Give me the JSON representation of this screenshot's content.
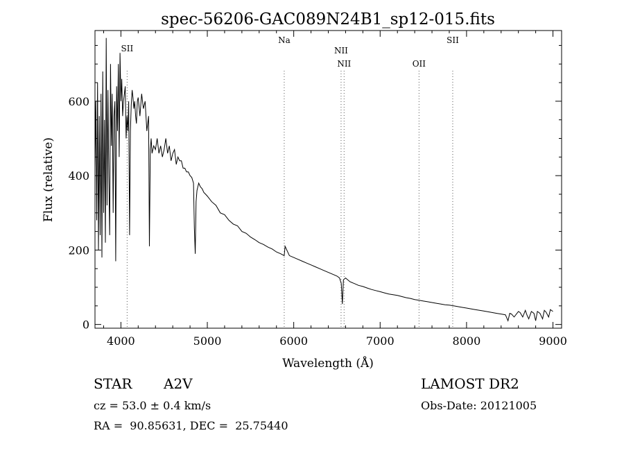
{
  "chart_data": {
    "type": "line",
    "title": "spec-56206-GAC089N24B1_sp12-015.fits",
    "xlabel": "Wavelength (Å)",
    "ylabel": "Flux (relative)",
    "xlim": [
      3700,
      9100
    ],
    "ylim": [
      -10,
      790
    ],
    "x_ticks": [
      4000,
      5000,
      6000,
      7000,
      8000,
      9000
    ],
    "x_tick_labels": [
      "4000",
      "5000",
      "6000",
      "7000",
      "8000",
      "9000"
    ],
    "y_ticks": [
      0,
      200,
      400,
      600
    ],
    "y_tick_labels": [
      "0",
      "200",
      "400",
      "600"
    ],
    "grid": false,
    "series": [
      {
        "x": [
          3700,
          3710,
          3720,
          3730,
          3740,
          3750,
          3760,
          3770,
          3780,
          3790,
          3800,
          3810,
          3820,
          3830,
          3840,
          3850,
          3860,
          3870,
          3880,
          3890,
          3900,
          3910,
          3920,
          3930,
          3940,
          3950,
          3960,
          3970,
          3980,
          3990,
          4000,
          4010,
          4020,
          4030,
          4040,
          4050,
          4060,
          4070,
          4080,
          4090,
          4100,
          4110,
          4120,
          4130,
          4140,
          4150,
          4160,
          4170,
          4180,
          4190,
          4200,
          4220,
          4240,
          4260,
          4280,
          4300,
          4320,
          4330,
          4340,
          4350,
          4360,
          4380,
          4400,
          4420,
          4440,
          4460,
          4480,
          4500,
          4520,
          4540,
          4560,
          4580,
          4600,
          4620,
          4640,
          4660,
          4680,
          4700,
          4720,
          4740,
          4760,
          4780,
          4800,
          4820,
          4840,
          4850,
          4860,
          4870,
          4880,
          4900,
          4920,
          4940,
          4960,
          4980,
          5000,
          5050,
          5100,
          5150,
          5200,
          5250,
          5300,
          5350,
          5400,
          5450,
          5500,
          5550,
          5600,
          5650,
          5700,
          5750,
          5800,
          5850,
          5890,
          5900,
          5950,
          6000,
          6050,
          6100,
          6150,
          6200,
          6250,
          6300,
          6350,
          6400,
          6450,
          6500,
          6530,
          6550,
          6563,
          6575,
          6600,
          6650,
          6700,
          6750,
          6800,
          6850,
          6900,
          6950,
          7000,
          7050,
          7100,
          7150,
          7200,
          7250,
          7300,
          7350,
          7400,
          7450,
          7500,
          7550,
          7600,
          7650,
          7700,
          7750,
          7800,
          7850,
          7900,
          7950,
          8000,
          8050,
          8100,
          8150,
          8200,
          8250,
          8300,
          8350,
          8400,
          8450,
          8480,
          8500,
          8520,
          8550,
          8600,
          8620,
          8650,
          8680,
          8700,
          8720,
          8750,
          8780,
          8800,
          8820,
          8850,
          8880,
          8900,
          8920,
          8950,
          8970,
          9000
        ],
        "y": [
          420,
          600,
          280,
          650,
          200,
          560,
          240,
          620,
          180,
          680,
          300,
          550,
          220,
          770,
          320,
          630,
          400,
          240,
          700,
          480,
          620,
          300,
          560,
          600,
          170,
          640,
          520,
          700,
          450,
          730,
          600,
          660,
          560,
          600,
          620,
          640,
          500,
          560,
          520,
          600,
          240,
          520,
          590,
          630,
          610,
          580,
          600,
          560,
          540,
          600,
          610,
          560,
          620,
          580,
          600,
          520,
          560,
          210,
          470,
          500,
          460,
          480,
          470,
          500,
          460,
          480,
          450,
          470,
          500,
          460,
          480,
          440,
          460,
          470,
          430,
          450,
          440,
          440,
          420,
          420,
          410,
          410,
          400,
          395,
          380,
          260,
          190,
          330,
          360,
          380,
          370,
          365,
          355,
          350,
          345,
          330,
          320,
          300,
          295,
          280,
          270,
          265,
          250,
          245,
          235,
          228,
          220,
          215,
          208,
          203,
          195,
          190,
          185,
          210,
          185,
          180,
          175,
          170,
          165,
          160,
          155,
          150,
          145,
          140,
          135,
          130,
          125,
          110,
          55,
          120,
          125,
          115,
          110,
          105,
          102,
          98,
          94,
          91,
          88,
          85,
          82,
          80,
          78,
          75,
          72,
          70,
          67,
          65,
          63,
          61,
          59,
          57,
          55,
          53,
          52,
          50,
          48,
          46,
          44,
          42,
          40,
          38,
          36,
          34,
          32,
          30,
          28,
          26,
          10,
          30,
          28,
          20,
          35,
          32,
          20,
          38,
          25,
          15,
          35,
          30,
          10,
          35,
          30,
          15,
          38,
          33,
          20,
          40,
          35
        ]
      }
    ],
    "lines": [
      {
        "label": "SII",
        "x": 4072
      },
      {
        "label": "Na",
        "x": 5890
      },
      {
        "label": "NII",
        "x": 6548
      },
      {
        "label": "NII",
        "x": 6583
      },
      {
        "label": "OII",
        "x": 7450
      },
      {
        "label": "SII",
        "x": 7840
      }
    ]
  },
  "info": {
    "object_class": "STAR",
    "subclass": "A2V",
    "cz": "cz = 53.0 ± 0.4 km/s",
    "coords": "RA =  90.85631, DEC =  25.75440",
    "survey": "LAMOST DR2",
    "obs_date": "Obs-Date: 20121005"
  }
}
